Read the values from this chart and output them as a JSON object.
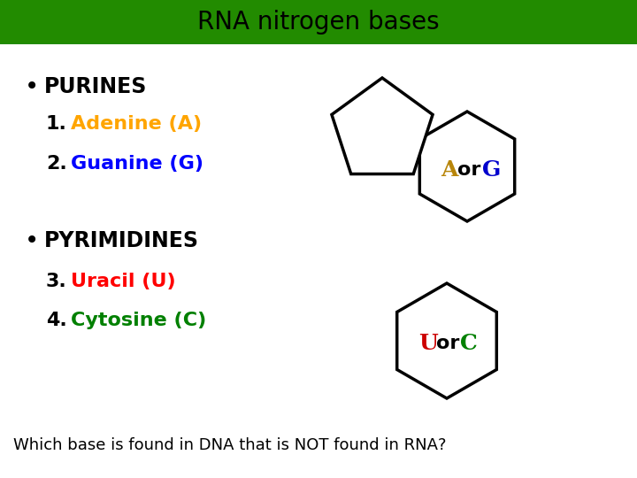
{
  "title": "RNA nitrogen bases",
  "title_bg": "#228B00",
  "title_color": "#000000",
  "title_fontsize": 20,
  "bg_color": "#ffffff",
  "bullet_color": "#000000",
  "purines_label": "PURINES",
  "item1_num": "1.",
  "item1_text": "Adenine (A)",
  "item1_color": "#FFA500",
  "item2_num": "2.",
  "item2_text": "Guanine (G)",
  "item2_color": "#0000FF",
  "pyrimidines_label": "PYRIMIDINES",
  "item3_num": "3.",
  "item3_text": "Uracil (U)",
  "item3_color": "#FF0000",
  "item4_num": "4.",
  "item4_text": "Cytosine (C)",
  "item4_color": "#008000",
  "footer": "Which base is found in DNA that is NOT found in RNA?",
  "footer_fontsize": 13,
  "A_color": "#B8860B",
  "G_color": "#0000CD",
  "or_color": "#000000",
  "U_color": "#CC0000",
  "C_color": "#008000",
  "shape_lw": 2.5,
  "shape_color": "#000000",
  "hex_bg": "#ffffff",
  "pentagon_bg": "#ffffff",
  "title_bar_height": 50
}
